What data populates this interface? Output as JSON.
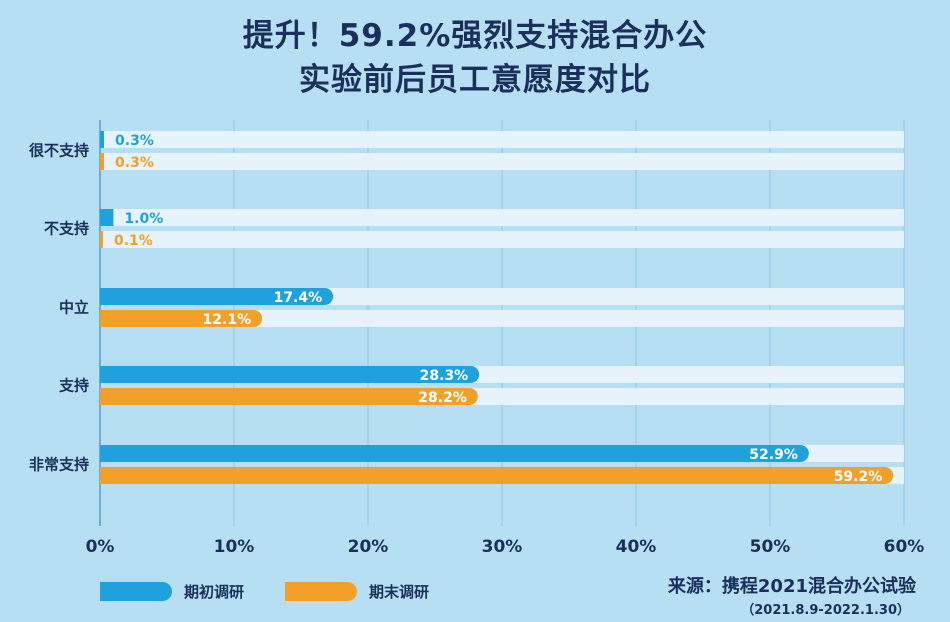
{
  "chart_data": {
    "type": "bar",
    "orientation": "horizontal",
    "title_line1": "提升！59.2%强烈支持混合办公",
    "title_line2": "实验前后员工意愿度对比",
    "categories": [
      "很不支持",
      "不支持",
      "中立",
      "支持",
      "非常支持"
    ],
    "series": [
      {
        "name": "期初调研",
        "color": "#1ea1dd",
        "values": [
          0.3,
          1.0,
          17.4,
          28.3,
          52.9
        ],
        "labels": [
          "0.3%",
          "1.0%",
          "17.4%",
          "28.3%",
          "52.9%"
        ]
      },
      {
        "name": "期末调研",
        "color": "#f2a02a",
        "values": [
          0.3,
          0.1,
          12.1,
          28.2,
          59.2
        ],
        "labels": [
          "0.3%",
          "0.1%",
          "12.1%",
          "28.2%",
          "59.2%"
        ]
      }
    ],
    "xlim": [
      0,
      60
    ],
    "x_ticks": [
      "0%",
      "10%",
      "20%",
      "30%",
      "40%",
      "50%",
      "60%"
    ],
    "grid": true,
    "legend_position": "bottom-left",
    "source": "来源：携程2021混合办公试验",
    "source_period": "（2021.8.9-2022.1.30）"
  },
  "colors": {
    "background": "#b7dff3",
    "track": "#e6f3fa",
    "title": "#1a2f5c",
    "grid": "#8fc6e2"
  }
}
